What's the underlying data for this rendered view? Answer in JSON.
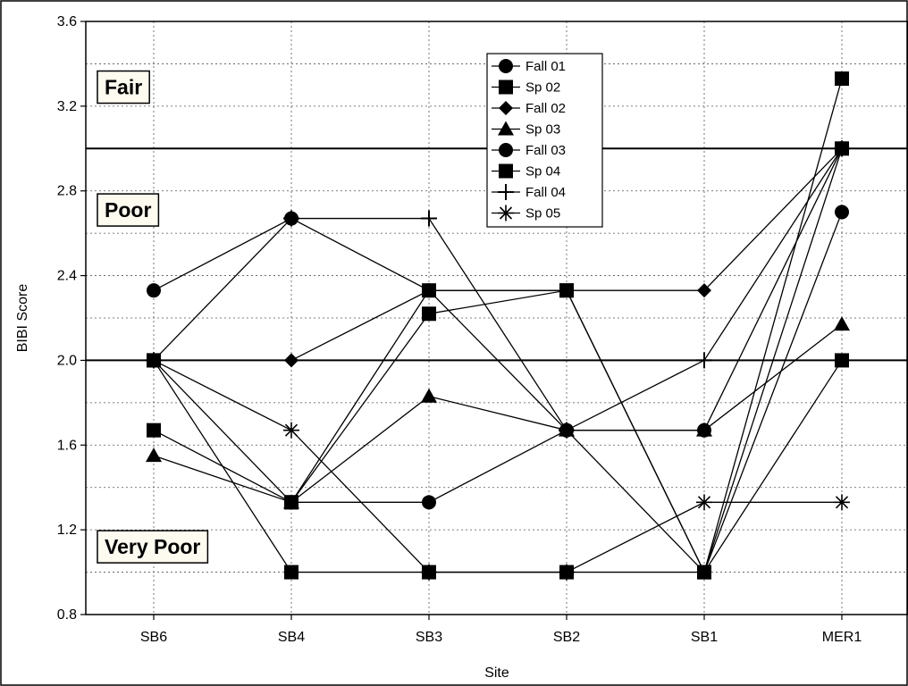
{
  "chart_data": {
    "type": "line",
    "xlabel": "Site",
    "ylabel": "BIBI Score",
    "categories": [
      "SB6",
      "SB4",
      "SB3",
      "SB2",
      "SB1",
      "MER1"
    ],
    "ylim": [
      0.8,
      3.6
    ],
    "yticks": [
      "0.8",
      "1.2",
      "1.6",
      "2.0",
      "2.4",
      "2.8",
      "3.2",
      "3.6"
    ],
    "grid": true,
    "legend_position": "top-center",
    "zone_labels": [
      {
        "text": "Fair",
        "y": 3.29
      },
      {
        "text": "Poor",
        "y": 2.71
      },
      {
        "text": "Very Poor",
        "y": 1.12
      }
    ],
    "thresholds": [
      3.0,
      2.0
    ],
    "series": [
      {
        "name": "Fall 01",
        "marker": "circle",
        "values": [
          2.33,
          2.67,
          2.33,
          1.67,
          1.67,
          3.0
        ]
      },
      {
        "name": "Sp 02",
        "marker": "square",
        "values": [
          2.0,
          1.33,
          2.22,
          2.33,
          1.0,
          3.33
        ]
      },
      {
        "name": "Fall 02",
        "marker": "diamond",
        "values": [
          null,
          2.0,
          2.33,
          2.33,
          2.33,
          3.0
        ]
      },
      {
        "name": "Sp 03",
        "marker": "triangle",
        "values": [
          1.55,
          1.33,
          1.83,
          1.67,
          1.67,
          2.17
        ]
      },
      {
        "name": "Fall 03",
        "marker": "circle",
        "values": [
          null,
          1.33,
          1.33,
          1.67,
          1.0,
          2.7
        ]
      },
      {
        "name": "Sp 04",
        "marker": "square",
        "values": [
          1.67,
          1.33,
          2.33,
          2.33,
          1.0,
          2.0
        ]
      },
      {
        "name": "Fall 04",
        "marker": "plus",
        "values": [
          2.0,
          2.67,
          2.67,
          1.67,
          2.0,
          3.0
        ]
      },
      {
        "name": "Sp 05",
        "marker": "asterisk",
        "values": [
          2.0,
          1.67,
          1.0,
          1.0,
          1.33,
          1.33
        ]
      },
      {
        "name": "",
        "marker": "square",
        "values": [
          2.0,
          1.0,
          1.0,
          1.0,
          1.0,
          3.0
        ]
      }
    ]
  }
}
